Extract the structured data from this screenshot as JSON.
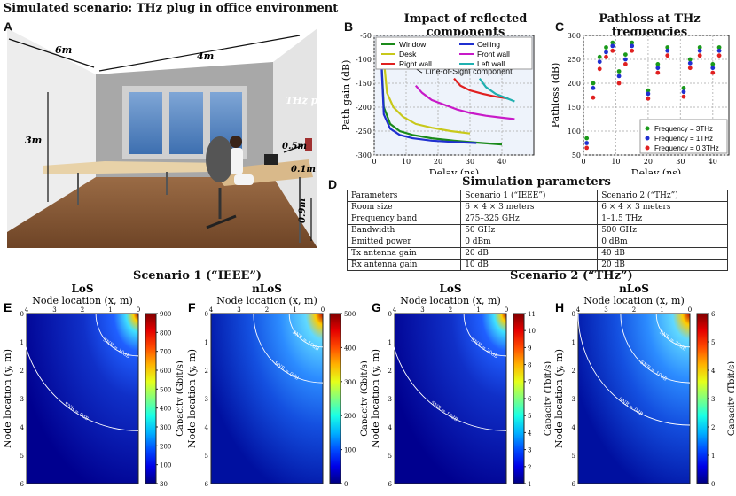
{
  "panel_a": {
    "letter": "A",
    "title": "Simulated scenario: THz plug in office environment",
    "dims": {
      "d6": "6m",
      "d4": "4m",
      "d3": "3m",
      "d05": "0.5m",
      "d01": "0.1m",
      "d09": "0.9m"
    },
    "plug_label": "THz plug"
  },
  "panel_b": {
    "letter": "B",
    "title": "Impact of reflected components",
    "annotation": "Line-of-Sight component",
    "legend": [
      {
        "name": "Window",
        "color": "#1a8a1a"
      },
      {
        "name": "Ceiling",
        "color": "#1f2fd0"
      },
      {
        "name": "Desk",
        "color": "#c8c81a"
      },
      {
        "name": "Front wall",
        "color": "#c81ac8"
      },
      {
        "name": "Right wall",
        "color": "#e02020"
      },
      {
        "name": "Left wall",
        "color": "#20b0b0"
      }
    ]
  },
  "panel_c": {
    "letter": "C",
    "title": "Pathloss at THz frequencies",
    "legend": [
      {
        "name": "Frequency = 3THz",
        "color": "#1a9a1a"
      },
      {
        "name": "Frequency = 1THz",
        "color": "#2030d0"
      },
      {
        "name": "Frequency = 0.3THz",
        "color": "#e02020"
      }
    ]
  },
  "panel_d": {
    "letter": "D",
    "title": "Simulation parameters",
    "headers": [
      "Parameters",
      "Scenario 1 (“IEEE”)",
      "Scenario 2 (“THz”)"
    ],
    "rows": [
      [
        "Room size",
        "6 × 4 × 3 meters",
        "6 × 4 × 3 meters"
      ],
      [
        "Frequency band",
        "275–325 GHz",
        "1–1.5 THz"
      ],
      [
        "Bandwidth",
        "50 GHz",
        "500 GHz"
      ],
      [
        "Emitted power",
        "0 dBm",
        "0 dBm"
      ],
      [
        "Tx antenna gain",
        "20 dB",
        "40 dB"
      ],
      [
        "Rx antenna gain",
        "10 dB",
        "20 dB"
      ]
    ]
  },
  "scenario_titles": {
    "s1": "Scenario 1 (“IEEE”)",
    "s2": "Scenario 2 (“THz”)"
  },
  "heatmaps": [
    {
      "letter": "E",
      "title": "LoS",
      "cbar_label": "Capacity (Gbit/s)",
      "cbar_ticks": [
        "900",
        "800",
        "700",
        "600",
        "500",
        "400",
        "300",
        "200",
        "100",
        "30"
      ],
      "contours": [
        "SNR = 10dB",
        "SNR = 0dB"
      ]
    },
    {
      "letter": "F",
      "title": "nLoS",
      "cbar_label": "Capacity (Gbit/s)",
      "cbar_ticks": [
        "500",
        "400",
        "300",
        "200",
        "100",
        "0"
      ],
      "contours": [
        "SNR = 10dB",
        "SNR = 0dB"
      ]
    },
    {
      "letter": "G",
      "title": "LoS",
      "cbar_label": "Capacity (Tbit/s)",
      "cbar_ticks": [
        "11",
        "10",
        "9",
        "8",
        "7",
        "6",
        "5",
        "4",
        "3",
        "2",
        "1"
      ],
      "contours": [
        "SNR = 20dB",
        "SNR = 10dB"
      ]
    },
    {
      "letter": "H",
      "title": "nLoS",
      "cbar_label": "Capacity (Tbit/s)",
      "cbar_ticks": [
        "6",
        "5",
        "4",
        "3",
        "2",
        "1",
        "0"
      ],
      "contours": [
        "SNR = 20dB",
        "SNR = 10dB",
        "SNR = 0dB"
      ]
    }
  ],
  "heatmap_axes": {
    "xlabel": "Node location (x, m)",
    "ylabel": "Node location (y, m)",
    "xticks": [
      "4",
      "3",
      "2",
      "1",
      "0"
    ],
    "yticks": [
      "0",
      "1",
      "2",
      "3",
      "4",
      "5",
      "6"
    ]
  },
  "chart_data": [
    {
      "type": "line",
      "title": "Impact of reflected components",
      "xlabel": "Delay (ns)",
      "ylabel": "Path gain (dB)",
      "xlim": [
        0,
        50
      ],
      "ylim": [
        -300,
        -50
      ],
      "xticks": [
        "0",
        "10",
        "20",
        "30",
        "40"
      ],
      "yticks": [
        "-50",
        "-100",
        "-150",
        "-200",
        "-250",
        "-300"
      ],
      "series": [
        {
          "name": "Window",
          "x": [
            2,
            3,
            5,
            8,
            12,
            18,
            25,
            32,
            40
          ],
          "y": [
            -70,
            -200,
            -235,
            -250,
            -258,
            -265,
            -270,
            -274,
            -278
          ]
        },
        {
          "name": "Desk",
          "x": [
            2,
            3,
            5,
            8,
            12,
            18,
            25,
            32
          ],
          "y": [
            -70,
            -215,
            -245,
            -258,
            -265,
            -270,
            -273,
            -275
          ]
        },
        {
          "name": "Right wall",
          "x": [
            3,
            4,
            6,
            9,
            13,
            18,
            24,
            30
          ],
          "y": [
            -100,
            -170,
            -200,
            -220,
            -235,
            -243,
            -250,
            -255
          ]
        },
        {
          "name": "Ceiling",
          "x": [
            13,
            15,
            18,
            22,
            26,
            30,
            35,
            40,
            44
          ],
          "y": [
            -155,
            -170,
            -185,
            -195,
            -205,
            -212,
            -218,
            -222,
            -225
          ]
        },
        {
          "name": "Front wall",
          "x": [
            25,
            27,
            30,
            34,
            38,
            42
          ],
          "y": [
            -140,
            -155,
            -165,
            -172,
            -178,
            -182
          ]
        },
        {
          "name": "Left wall",
          "x": [
            33,
            35,
            38,
            41,
            44
          ],
          "y": [
            -140,
            -158,
            -172,
            -180,
            -188
          ]
        }
      ],
      "annotations": [
        "Line-of-Sight component"
      ]
    },
    {
      "type": "scatter",
      "title": "Pathloss at THz frequencies",
      "xlabel": "Delay (ns)",
      "ylabel": "Pathloss (dB)",
      "xlim": [
        0,
        45
      ],
      "ylim": [
        50,
        300
      ],
      "xticks": [
        "0",
        "10",
        "20",
        "30",
        "40"
      ],
      "yticks": [
        "300",
        "250",
        "200",
        "150",
        "100",
        "50"
      ],
      "series": [
        {
          "name": "Frequency = 3THz",
          "x": [
            1,
            3,
            5,
            7,
            9,
            11,
            13,
            15,
            20,
            23,
            26,
            31,
            33,
            36,
            40,
            42
          ],
          "y": [
            85,
            200,
            255,
            275,
            285,
            225,
            260,
            285,
            185,
            240,
            275,
            190,
            250,
            275,
            240,
            275
          ]
        },
        {
          "name": "Frequency = 1THz",
          "x": [
            1,
            3,
            5,
            7,
            9,
            11,
            13,
            15,
            20,
            23,
            26,
            31,
            33,
            36,
            40,
            42
          ],
          "y": [
            75,
            190,
            245,
            265,
            278,
            215,
            250,
            278,
            178,
            232,
            268,
            182,
            242,
            268,
            232,
            268
          ]
        },
        {
          "name": "Frequency = 0.3THz",
          "x": [
            1,
            3,
            5,
            7,
            9,
            11,
            13,
            15,
            20,
            23,
            26,
            31,
            33,
            36,
            40,
            42
          ],
          "y": [
            65,
            170,
            230,
            255,
            268,
            200,
            240,
            268,
            168,
            222,
            258,
            172,
            232,
            258,
            222,
            258
          ]
        }
      ]
    }
  ]
}
